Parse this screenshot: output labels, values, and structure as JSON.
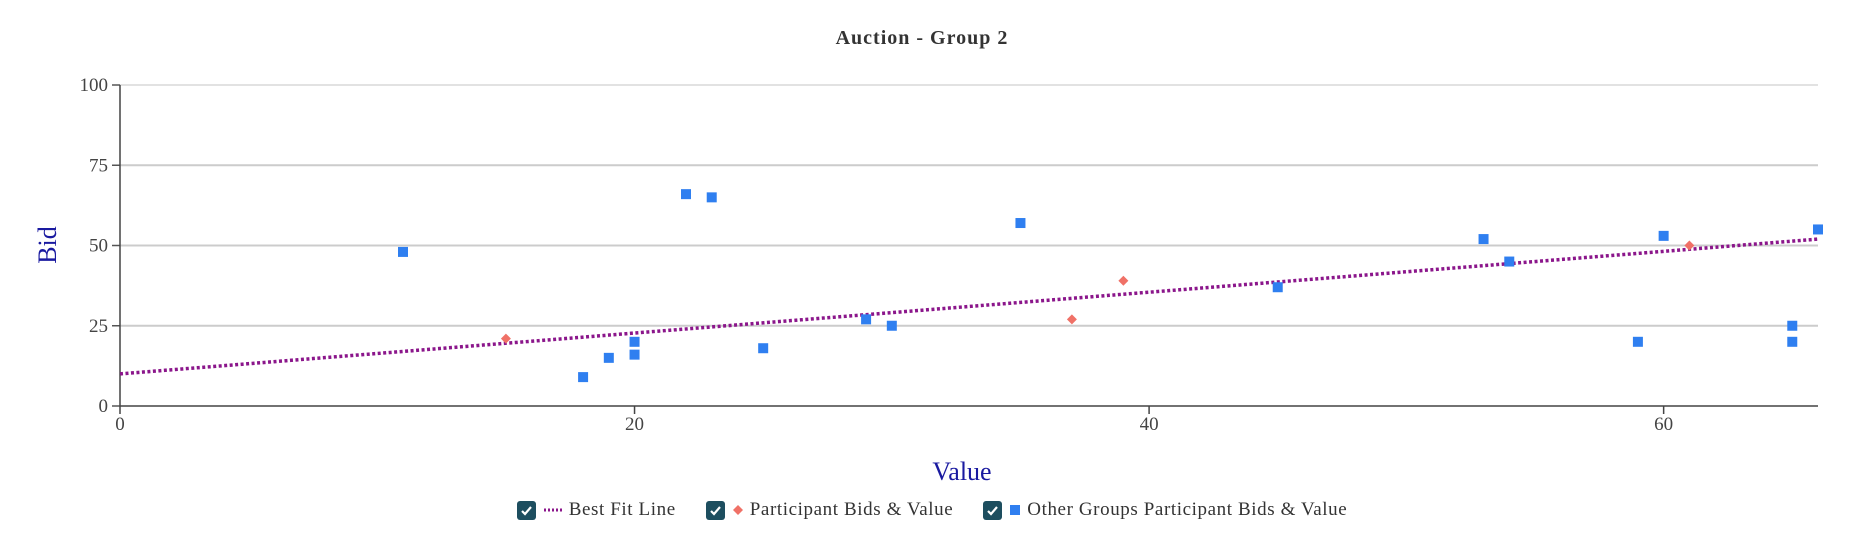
{
  "chart_data": {
    "type": "scatter",
    "title": "Auction - Group 2",
    "xlabel": "Value",
    "ylabel": "Bid",
    "xlim": [
      0,
      66
    ],
    "ylim": [
      0,
      100
    ],
    "x_ticks": [
      0,
      20,
      40,
      60
    ],
    "y_ticks": [
      0,
      25,
      50,
      75,
      100
    ],
    "grid": true,
    "legend_position": "bottom-center",
    "best_fit_line": {
      "name": "Best Fit Line",
      "color": "#8b168b",
      "start": [
        0,
        10
      ],
      "end": [
        66,
        52
      ]
    },
    "series": [
      {
        "name": "Participant Bids & Value",
        "marker": "diamond",
        "color": "#f07167",
        "points": [
          [
            15,
            21
          ],
          [
            37,
            27
          ],
          [
            39,
            39
          ],
          [
            61,
            50
          ]
        ]
      },
      {
        "name": "Other Groups Participant Bids & Value",
        "marker": "square",
        "color": "#2f7ff0",
        "points": [
          [
            11,
            48
          ],
          [
            18,
            9
          ],
          [
            19,
            15
          ],
          [
            20,
            16
          ],
          [
            20,
            20
          ],
          [
            22,
            66
          ],
          [
            23,
            65
          ],
          [
            25,
            18
          ],
          [
            29,
            27
          ],
          [
            30,
            25
          ],
          [
            35,
            57
          ],
          [
            45,
            37
          ],
          [
            53,
            52
          ],
          [
            54,
            45
          ],
          [
            59,
            20
          ],
          [
            60,
            53
          ],
          [
            65,
            25
          ],
          [
            65,
            20
          ],
          [
            66,
            55
          ]
        ]
      }
    ]
  },
  "legend": {
    "items": [
      {
        "label": "Best Fit Line",
        "checked": true,
        "swatch": "dotted-line",
        "color": "#8b168b"
      },
      {
        "label": "Participant Bids & Value",
        "checked": true,
        "swatch": "diamond",
        "color": "#f07167"
      },
      {
        "label": "Other Groups Participant Bids & Value",
        "checked": true,
        "swatch": "square",
        "color": "#2f7ff0"
      }
    ]
  }
}
